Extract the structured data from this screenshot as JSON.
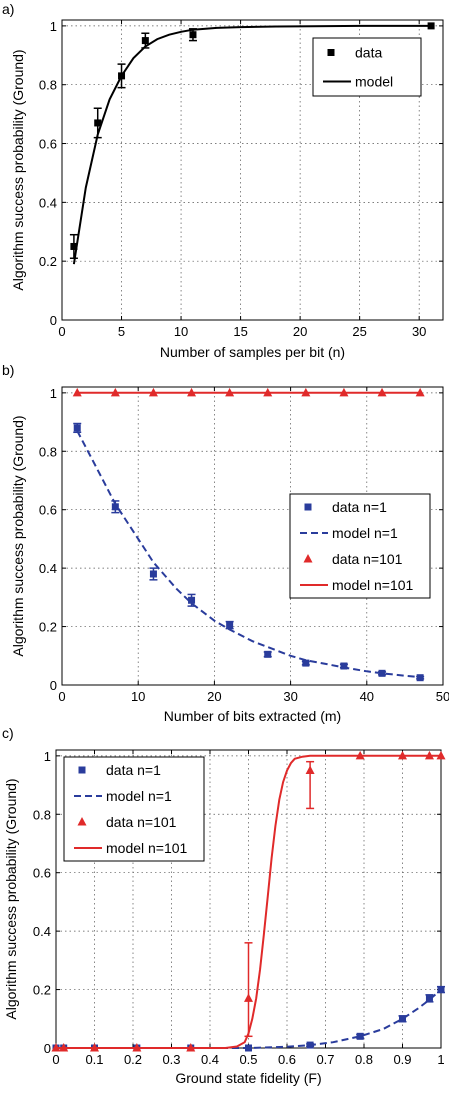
{
  "chart_data": [
    {
      "panel_label": "a)",
      "type": "line",
      "xlabel": "Number of samples per bit (n)",
      "ylabel": "Algorithm success probability (Ground)",
      "xlim": [
        0,
        32
      ],
      "ylim": [
        0,
        1.02
      ],
      "xticks": [
        "0",
        "5",
        "10",
        "15",
        "20",
        "25",
        "30"
      ],
      "yticks": [
        "0",
        "0.2",
        "0.4",
        "0.6",
        "0.8",
        "1"
      ],
      "grid": true,
      "legend_position": "top-right",
      "series": [
        {
          "name": "data",
          "kind": "points",
          "marker": "square",
          "color": "#000000",
          "x": [
            1,
            3,
            5,
            7,
            11,
            31
          ],
          "y": [
            0.25,
            0.67,
            0.83,
            0.95,
            0.97,
            1.0
          ],
          "err": [
            0.04,
            0.05,
            0.04,
            0.025,
            0.02,
            0.0
          ]
        },
        {
          "name": "model",
          "kind": "line",
          "style": "solid",
          "color": "#000000",
          "x": [
            1,
            2,
            3,
            4,
            5,
            6,
            7,
            8,
            9,
            10,
            11,
            13,
            15,
            18,
            21,
            25,
            31
          ],
          "y": [
            0.19,
            0.45,
            0.63,
            0.75,
            0.83,
            0.89,
            0.93,
            0.955,
            0.97,
            0.98,
            0.987,
            0.993,
            0.996,
            0.998,
            0.999,
            1.0,
            1.0
          ]
        }
      ]
    },
    {
      "panel_label": "b)",
      "type": "line",
      "xlabel": "Number of bits extracted (m)",
      "ylabel": "Algorithm success probability (Ground)",
      "xlim": [
        0,
        50
      ],
      "ylim": [
        0,
        1.02
      ],
      "xticks": [
        "0",
        "10",
        "20",
        "30",
        "40",
        "50"
      ],
      "yticks": [
        "0",
        "0.2",
        "0.4",
        "0.6",
        "0.8",
        "1"
      ],
      "grid": true,
      "legend_position": "top-right",
      "series": [
        {
          "name": "data n=1",
          "kind": "points",
          "marker": "square",
          "color": "#2a3c9c",
          "x": [
            2,
            7,
            12,
            17,
            22,
            27,
            32,
            37,
            42,
            47
          ],
          "y": [
            0.88,
            0.61,
            0.38,
            0.29,
            0.205,
            0.105,
            0.075,
            0.065,
            0.04,
            0.025
          ],
          "err": [
            0.015,
            0.02,
            0.02,
            0.02,
            0.012,
            0.008,
            0.006,
            0.006,
            0.005,
            0.004
          ]
        },
        {
          "name": "model n=1",
          "kind": "line",
          "style": "dashed",
          "color": "#2a3c9c",
          "x": [
            2,
            4,
            7,
            10,
            12,
            15,
            17,
            20,
            22,
            25,
            27,
            30,
            32,
            35,
            37,
            40,
            42,
            45,
            47
          ],
          "y": [
            0.87,
            0.77,
            0.62,
            0.5,
            0.42,
            0.33,
            0.28,
            0.22,
            0.19,
            0.15,
            0.13,
            0.1,
            0.085,
            0.07,
            0.06,
            0.047,
            0.04,
            0.032,
            0.027
          ]
        },
        {
          "name": "data n=101",
          "kind": "points",
          "marker": "triangle",
          "color": "#e02a2a",
          "x": [
            2,
            7,
            12,
            17,
            22,
            27,
            32,
            37,
            42,
            47
          ],
          "y": [
            1,
            1,
            1,
            1,
            1,
            1,
            1,
            1,
            1,
            1
          ]
        },
        {
          "name": "model n=101",
          "kind": "line",
          "style": "solid",
          "color": "#e02a2a",
          "x": [
            2,
            47
          ],
          "y": [
            1,
            1
          ]
        }
      ]
    },
    {
      "panel_label": "c)",
      "type": "line",
      "xlabel": "Ground state fidelity (F)",
      "ylabel": "Algorithm success probability (Ground)",
      "xlim": [
        0,
        1
      ],
      "ylim": [
        0,
        1.02
      ],
      "xticks": [
        "0",
        "0.1",
        "0.2",
        "0.3",
        "0.4",
        "0.5",
        "0.6",
        "0.7",
        "0.8",
        "0.9",
        "1"
      ],
      "yticks": [
        "0",
        "0.2",
        "0.4",
        "0.6",
        "0.8",
        "1"
      ],
      "grid": true,
      "legend_position": "top-left",
      "series": [
        {
          "name": "data n=1",
          "kind": "points",
          "marker": "square",
          "color": "#2a3c9c",
          "x": [
            0.0,
            0.02,
            0.1,
            0.21,
            0.35,
            0.5,
            0.66,
            0.79,
            0.9,
            0.97,
            1.0
          ],
          "y": [
            0.0,
            0.0,
            0.0,
            0.0,
            0.0,
            0.0,
            0.01,
            0.04,
            0.1,
            0.17,
            0.2
          ],
          "err": [
            0,
            0,
            0,
            0,
            0,
            0,
            0.004,
            0.006,
            0.01,
            0.012,
            0.01
          ]
        },
        {
          "name": "model n=1",
          "kind": "line",
          "style": "dashed",
          "color": "#2a3c9c",
          "x": [
            0.0,
            0.3,
            0.5,
            0.6,
            0.66,
            0.72,
            0.79,
            0.85,
            0.9,
            0.94,
            0.97,
            1.0
          ],
          "y": [
            0.0,
            0.0,
            0.0,
            0.004,
            0.01,
            0.02,
            0.04,
            0.065,
            0.1,
            0.135,
            0.165,
            0.2
          ]
        },
        {
          "name": "data n=101",
          "kind": "points",
          "marker": "triangle",
          "color": "#e02a2a",
          "x": [
            0.0,
            0.02,
            0.1,
            0.21,
            0.35,
            0.5,
            0.66,
            0.79,
            0.9,
            0.97,
            1.0
          ],
          "y": [
            0.0,
            0.0,
            0.0,
            0.0,
            0.0,
            0.17,
            0.95,
            1.0,
            1.0,
            1.0,
            1.0
          ],
          "err_low": [
            0,
            0,
            0,
            0,
            0,
            0.13,
            0.13,
            0,
            0,
            0,
            0
          ],
          "err_high": [
            0,
            0,
            0,
            0,
            0,
            0.19,
            0.03,
            0,
            0,
            0,
            0
          ]
        },
        {
          "name": "model n=101",
          "kind": "line",
          "style": "solid",
          "color": "#e02a2a",
          "x": [
            0.0,
            0.44,
            0.47,
            0.49,
            0.5,
            0.51,
            0.52,
            0.53,
            0.54,
            0.55,
            0.56,
            0.57,
            0.58,
            0.59,
            0.6,
            0.61,
            0.62,
            0.64,
            0.66,
            0.7,
            1.0
          ],
          "y": [
            0.0,
            0.0,
            0.005,
            0.02,
            0.05,
            0.1,
            0.17,
            0.27,
            0.39,
            0.52,
            0.65,
            0.76,
            0.85,
            0.91,
            0.95,
            0.975,
            0.99,
            0.997,
            1.0,
            1.0,
            1.0
          ]
        }
      ]
    }
  ]
}
